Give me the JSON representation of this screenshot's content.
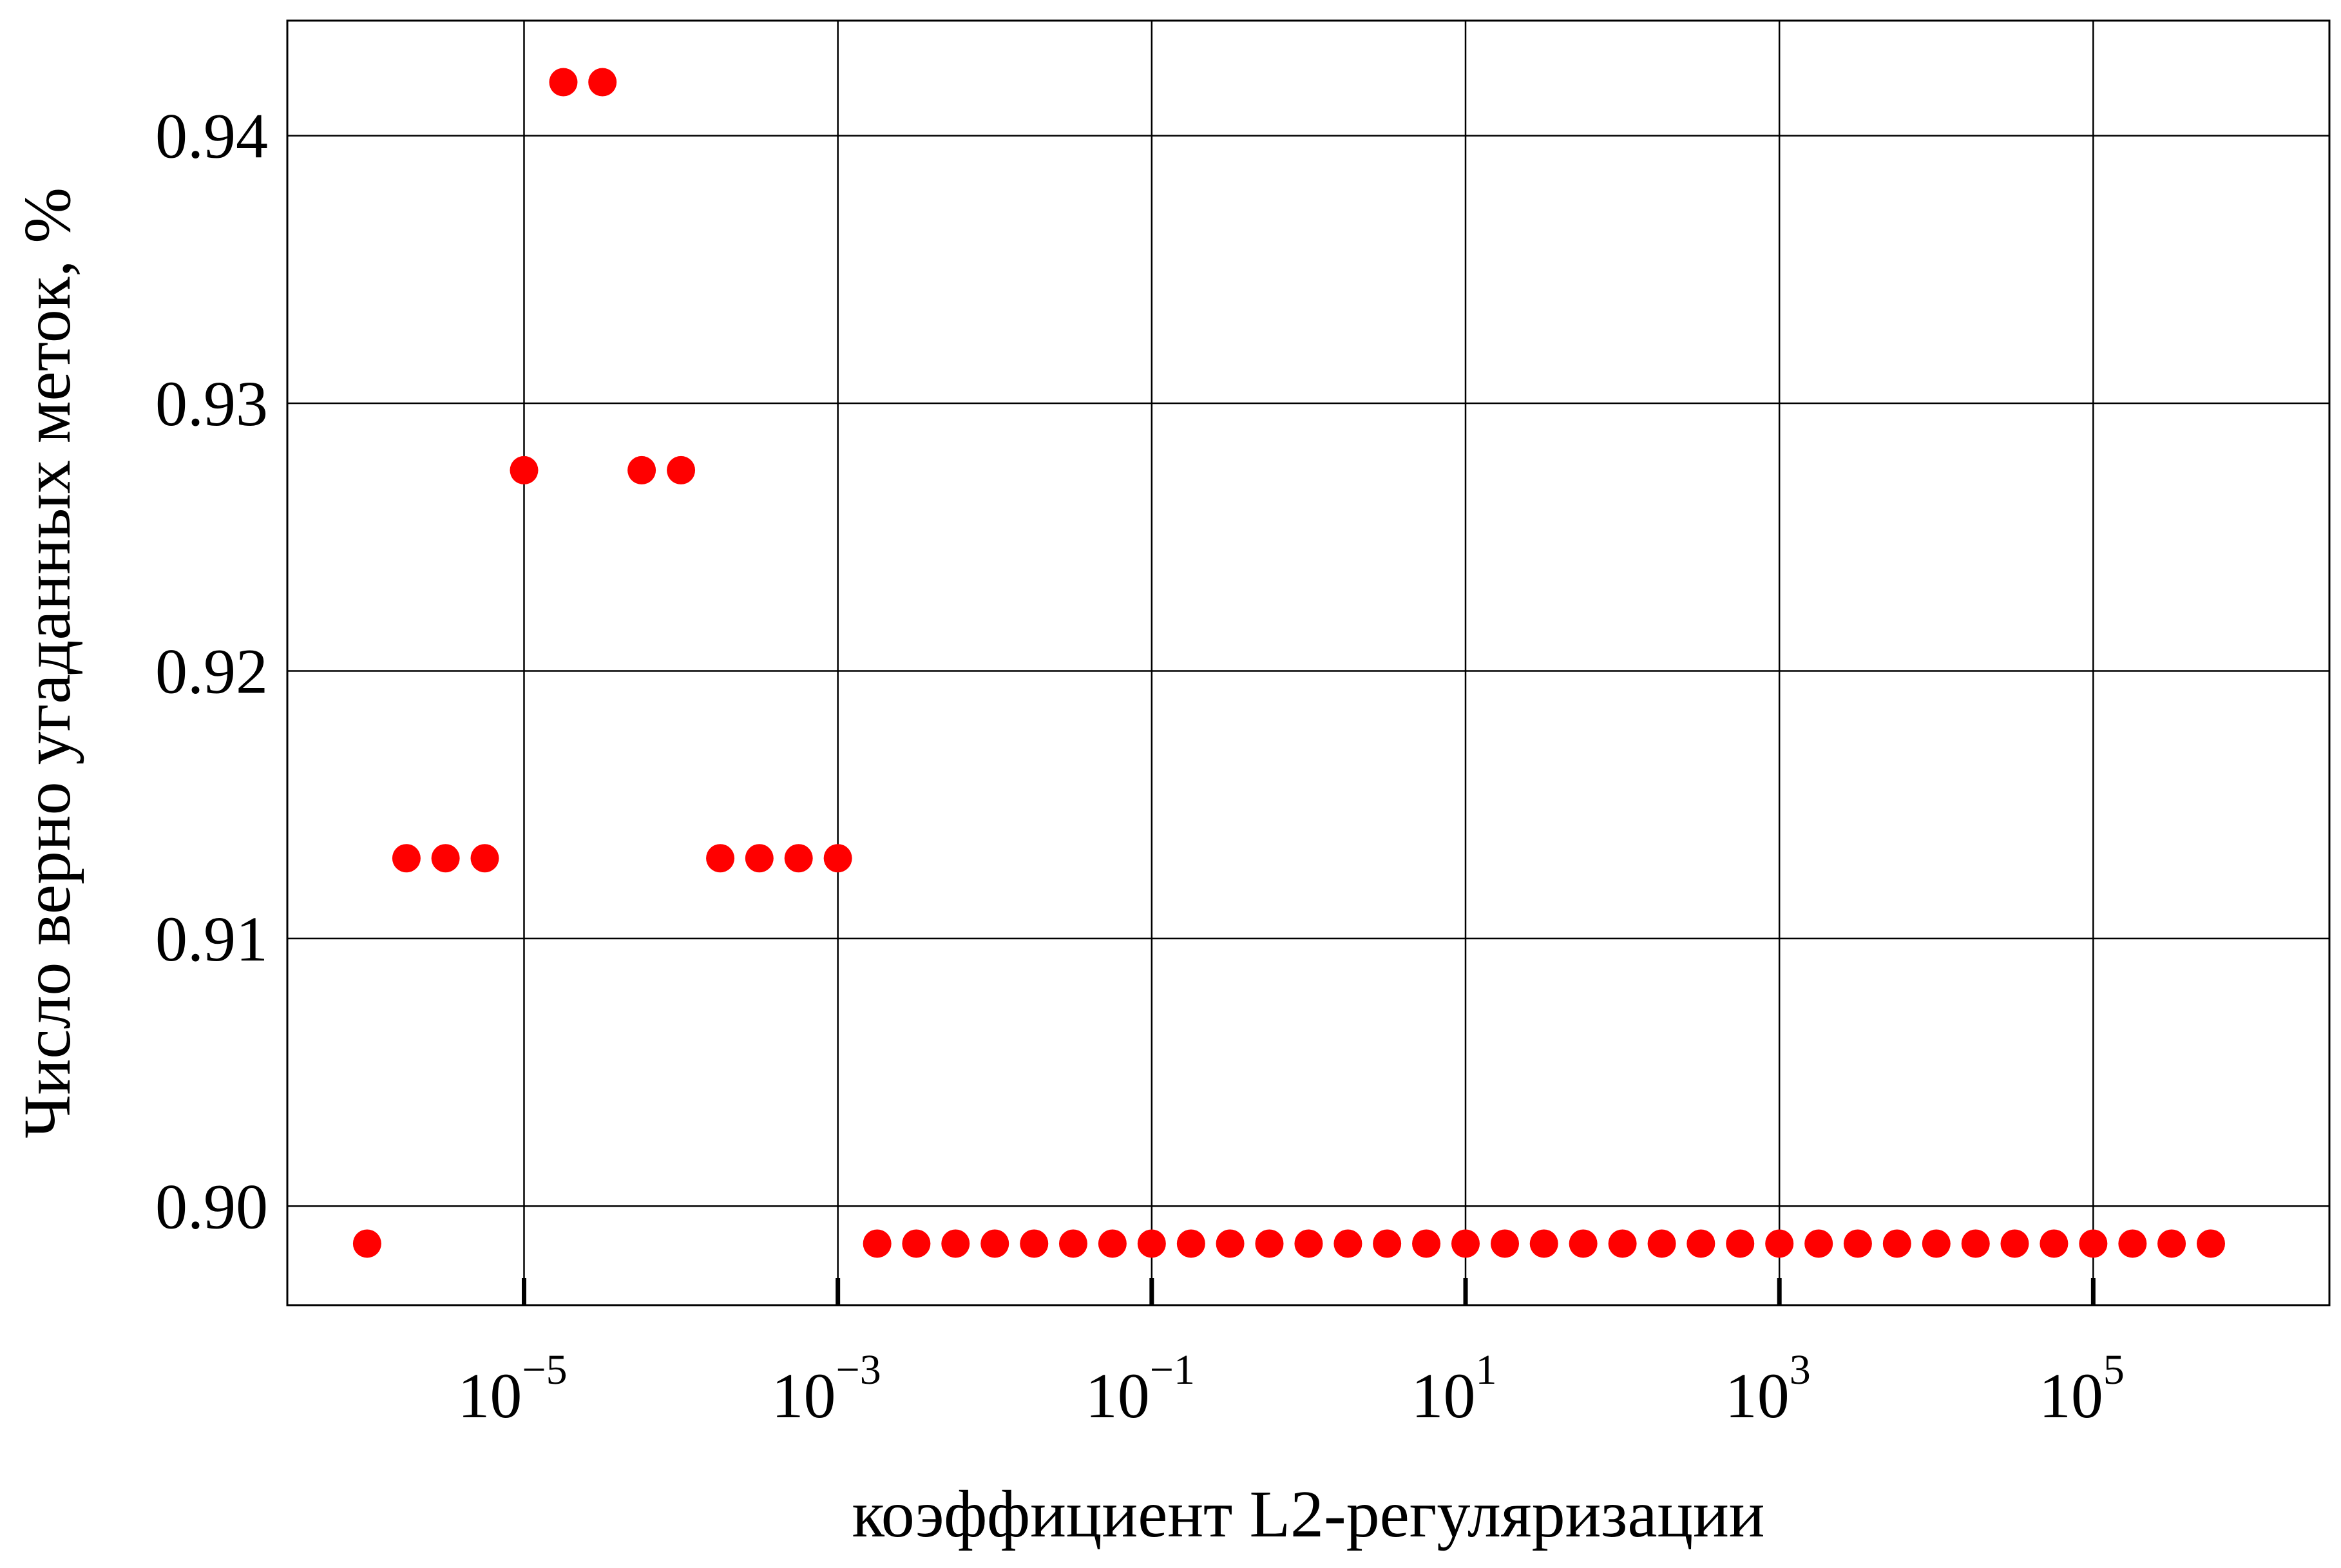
{
  "chart_data": {
    "type": "scatter",
    "title": "",
    "xlabel": "коэффициент L2-регуляризации",
    "ylabel": "Число верно угаданных меток, %",
    "xscale": "log",
    "xlim": [
      3.1e-07,
      3200000.0
    ],
    "ylim": [
      0.8963,
      0.9443
    ],
    "x_ticks": [
      {
        "value": 1e-05,
        "base": "10",
        "exp": "−5"
      },
      {
        "value": 0.001,
        "base": "10",
        "exp": "−3"
      },
      {
        "value": 0.1,
        "base": "10",
        "exp": "−1"
      },
      {
        "value": 10.0,
        "base": "10",
        "exp": "1"
      },
      {
        "value": 1000.0,
        "base": "10",
        "exp": "3"
      },
      {
        "value": 100000.0,
        "base": "10",
        "exp": "5"
      }
    ],
    "y_ticks": [
      {
        "value": 0.9,
        "label": "0.90"
      },
      {
        "value": 0.91,
        "label": "0.91"
      },
      {
        "value": 0.92,
        "label": "0.92"
      },
      {
        "value": 0.93,
        "label": "0.93"
      },
      {
        "value": 0.94,
        "label": "0.94"
      }
    ],
    "grid": true,
    "marker_color": "#ff0000",
    "series": [
      {
        "x": [
          1e-06,
          1.78e-06,
          3.16e-06,
          5.62e-06,
          1e-05,
          1.78e-05,
          3.16e-05,
          5.62e-05,
          0.0001,
          0.000178,
          0.000316,
          0.000562,
          0.001,
          0.00178,
          0.00316,
          0.00562,
          0.01,
          0.0178,
          0.0316,
          0.0562,
          0.1,
          0.178,
          0.316,
          0.562,
          1,
          1.78,
          3.16,
          5.62,
          10,
          17.8,
          31.6,
          56.2,
          100,
          178,
          316,
          562,
          1000,
          1780,
          3160,
          5620,
          10000,
          17800,
          31600,
          56200,
          100000,
          178000,
          316000,
          562000
        ],
        "y": [
          0.8986,
          0.913,
          0.913,
          0.913,
          0.9275,
          0.942,
          0.942,
          0.9275,
          0.9275,
          0.913,
          0.913,
          0.913,
          0.913,
          0.8986,
          0.8986,
          0.8986,
          0.8986,
          0.8986,
          0.8986,
          0.8986,
          0.8986,
          0.8986,
          0.8986,
          0.8986,
          0.8986,
          0.8986,
          0.8986,
          0.8986,
          0.8986,
          0.8986,
          0.8986,
          0.8986,
          0.8986,
          0.8986,
          0.8986,
          0.8986,
          0.8986,
          0.8986,
          0.8986,
          0.8986,
          0.8986,
          0.8986,
          0.8986,
          0.8986,
          0.8986,
          0.8986,
          0.8986,
          0.8986
        ]
      }
    ]
  }
}
